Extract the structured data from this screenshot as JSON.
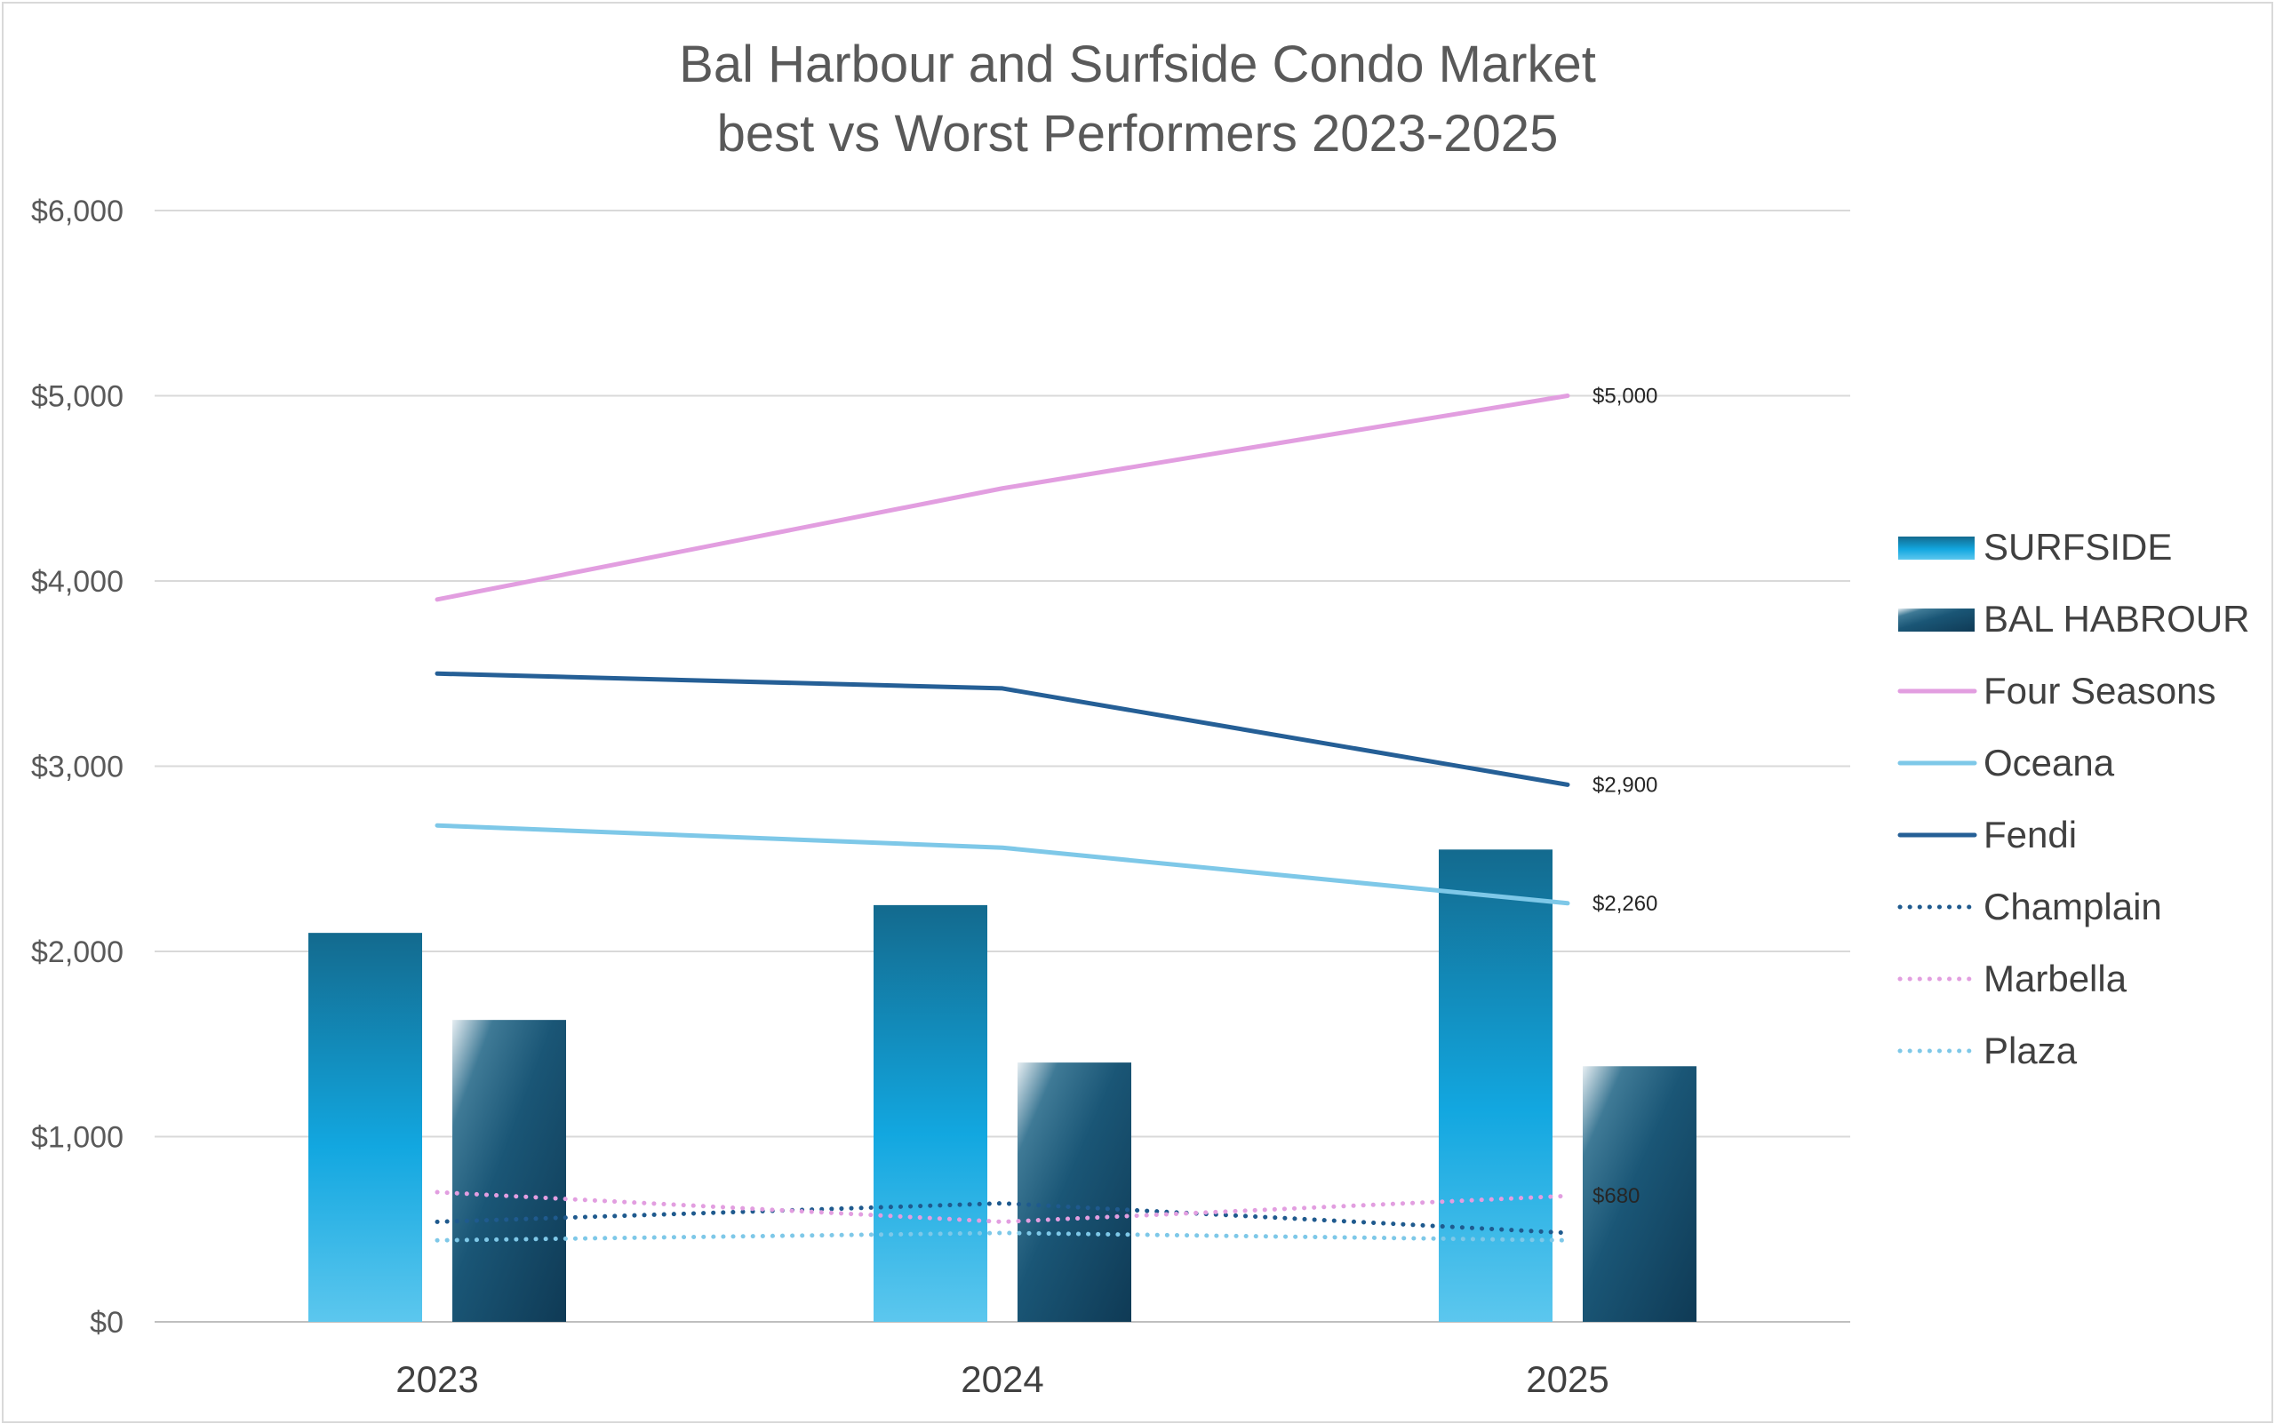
{
  "chart_data": {
    "type": "bar",
    "title": [
      "Bal Harbour and Surfside Condo Market",
      "best vs Worst Performers 2023-2025"
    ],
    "categories": [
      "2023",
      "2024",
      "2025"
    ],
    "ylim": [
      0,
      6000
    ],
    "yticks": [
      "$0",
      "$1,000",
      "$2,000",
      "$3,000",
      "$4,000",
      "$5,000",
      "$6,000"
    ],
    "ytick_values": [
      0,
      1000,
      2000,
      3000,
      4000,
      5000,
      6000
    ],
    "grid": true,
    "legend_position": "right",
    "bar_series": [
      {
        "name": "SURFSIDE",
        "values": [
          2100,
          2250,
          2550
        ],
        "color": "#1aa3dd"
      },
      {
        "name": "BAL HABROUR",
        "values": [
          1630,
          1400,
          1380
        ],
        "color": "#174c6b"
      }
    ],
    "line_series": [
      {
        "name": "Four Seasons",
        "values": [
          3900,
          4500,
          5000
        ],
        "color": "#e29ee0",
        "style": "solid",
        "end_label": "$5,000"
      },
      {
        "name": "Oceana",
        "values": [
          2680,
          2560,
          2260
        ],
        "color": "#7ec8e8",
        "style": "solid",
        "end_label": "$2,260"
      },
      {
        "name": "Fendi",
        "values": [
          3500,
          3420,
          2900
        ],
        "color": "#255f96",
        "style": "solid",
        "end_label": "$2,900"
      },
      {
        "name": "Champlain",
        "values": [
          540,
          640,
          480
        ],
        "color": "#1f5a8e",
        "style": "dotted",
        "end_label": ""
      },
      {
        "name": "Marbella",
        "values": [
          700,
          540,
          680
        ],
        "color": "#e29ee0",
        "style": "dotted",
        "end_label": "$680"
      },
      {
        "name": "Plaza",
        "values": [
          440,
          480,
          440
        ],
        "color": "#7ec8e8",
        "style": "dotted",
        "end_label": ""
      }
    ]
  }
}
